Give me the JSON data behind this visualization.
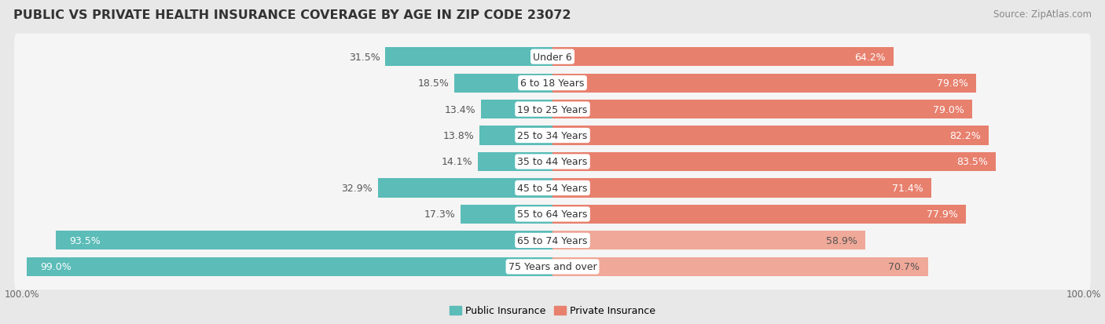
{
  "title": "Public vs Private Health Insurance Coverage by Age in Zip Code 23072",
  "title_display": "PUBLIC VS PRIVATE HEALTH INSURANCE COVERAGE BY AGE IN ZIP CODE 23072",
  "source": "Source: ZipAtlas.com",
  "categories": [
    "Under 6",
    "6 to 18 Years",
    "19 to 25 Years",
    "25 to 34 Years",
    "35 to 44 Years",
    "45 to 54 Years",
    "55 to 64 Years",
    "65 to 74 Years",
    "75 Years and over"
  ],
  "public_values": [
    31.5,
    18.5,
    13.4,
    13.8,
    14.1,
    32.9,
    17.3,
    93.5,
    99.0
  ],
  "private_values": [
    64.2,
    79.8,
    79.0,
    82.2,
    83.5,
    71.4,
    77.9,
    58.9,
    70.7
  ],
  "public_color": "#5bbcb8",
  "private_color": "#e8806e",
  "private_color_light": "#f0a898",
  "bg_color": "#e8e8e8",
  "row_bg_color": "#f5f5f5",
  "bar_height": 0.72,
  "title_fontsize": 11.5,
  "label_fontsize": 9,
  "value_fontsize": 9,
  "tick_fontsize": 8.5,
  "source_fontsize": 8.5,
  "max_val": 100
}
